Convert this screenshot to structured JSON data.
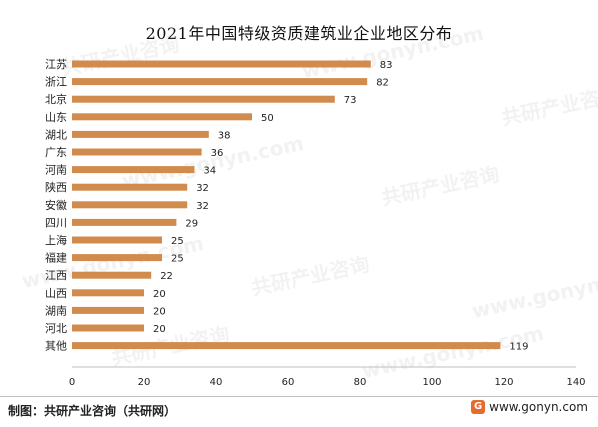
{
  "title": "2021年中国特级资质建筑业企业地区分布",
  "footer": {
    "source": "制图：共研产业咨询（共研网）",
    "website": "www.gonyn.com",
    "logo_glyph": "G"
  },
  "watermark": {
    "cn": "共研产业咨询",
    "en": "www.gonyn.com"
  },
  "colors": {
    "bar": "#d18b4c",
    "axis": "#bfbfbf",
    "text": "#222222"
  },
  "chart_data": {
    "type": "bar",
    "orientation": "horizontal",
    "categories": [
      "江苏",
      "浙江",
      "北京",
      "山东",
      "湖北",
      "广东",
      "河南",
      "陕西",
      "安徽",
      "四川",
      "上海",
      "福建",
      "江西",
      "山西",
      "湖南",
      "河北",
      "其他"
    ],
    "values": [
      83,
      82,
      73,
      50,
      38,
      36,
      34,
      32,
      32,
      29,
      25,
      25,
      22,
      20,
      20,
      20,
      119
    ],
    "xlim": [
      0,
      140
    ],
    "xticks": [
      0,
      20,
      40,
      60,
      80,
      100,
      120,
      140
    ],
    "grid": false,
    "legend": "none",
    "data_labels": true
  }
}
